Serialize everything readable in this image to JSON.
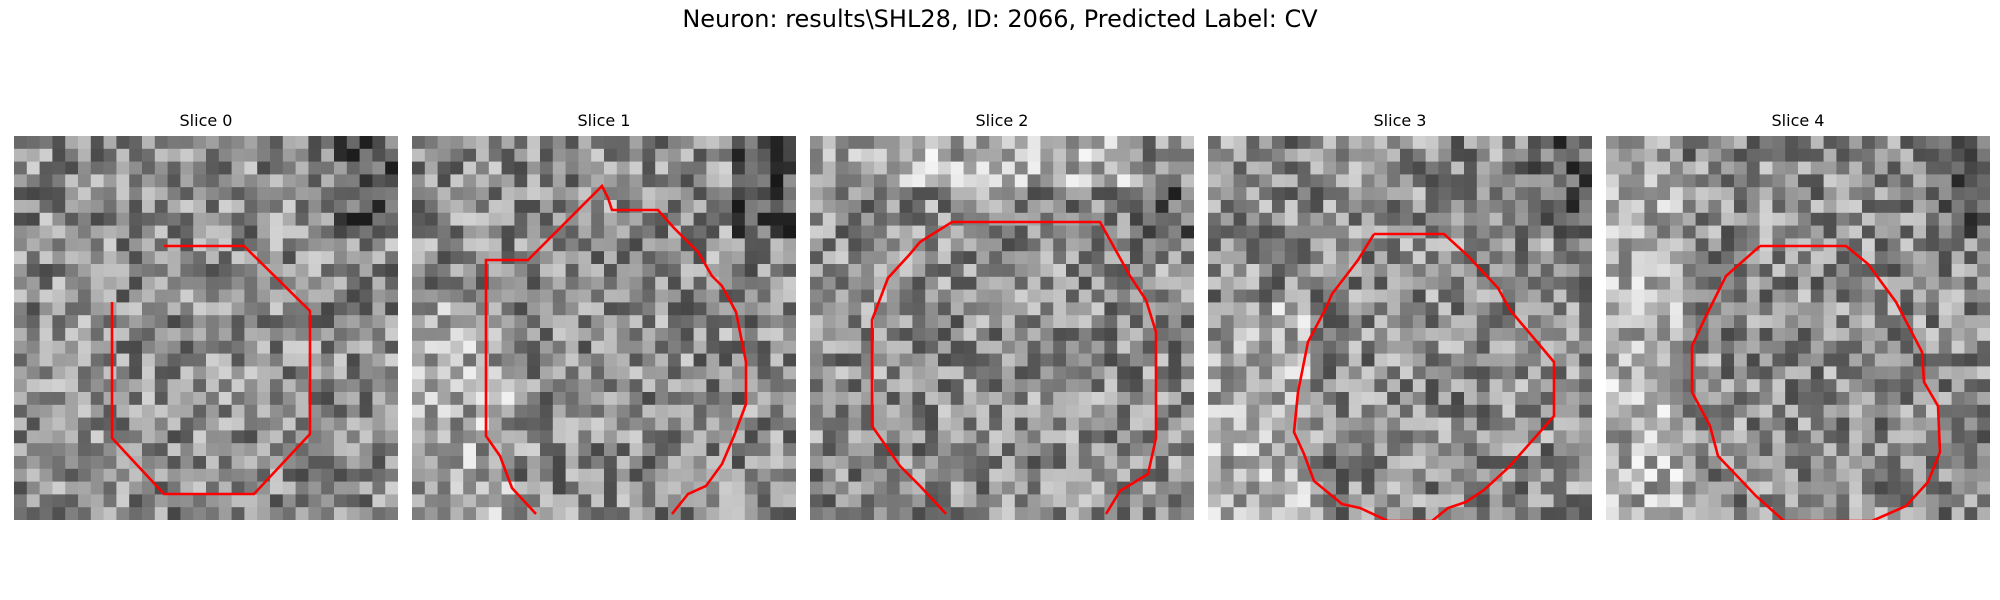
{
  "figure": {
    "title": "Neuron: results\\SHL28, ID: 2066, Predicted Label: CV"
  },
  "panels": [
    {
      "title": "Slice 0",
      "grid_size": 30,
      "seed": 11,
      "light_region": "none",
      "outline_closed": true
    },
    {
      "title": "Slice 1",
      "grid_size": 30,
      "seed": 23,
      "light_region": "top-left",
      "outline_closed": false
    },
    {
      "title": "Slice 2",
      "grid_size": 30,
      "seed": 37,
      "light_region": "top",
      "outline_closed": false
    },
    {
      "title": "Slice 3",
      "grid_size": 30,
      "seed": 41,
      "light_region": "top-left",
      "outline_closed": true
    },
    {
      "title": "Slice 4",
      "grid_size": 30,
      "seed": 53,
      "light_region": "left",
      "outline_closed": true
    }
  ],
  "colors": {
    "outline": "#ff0000",
    "colormap": "gray"
  }
}
